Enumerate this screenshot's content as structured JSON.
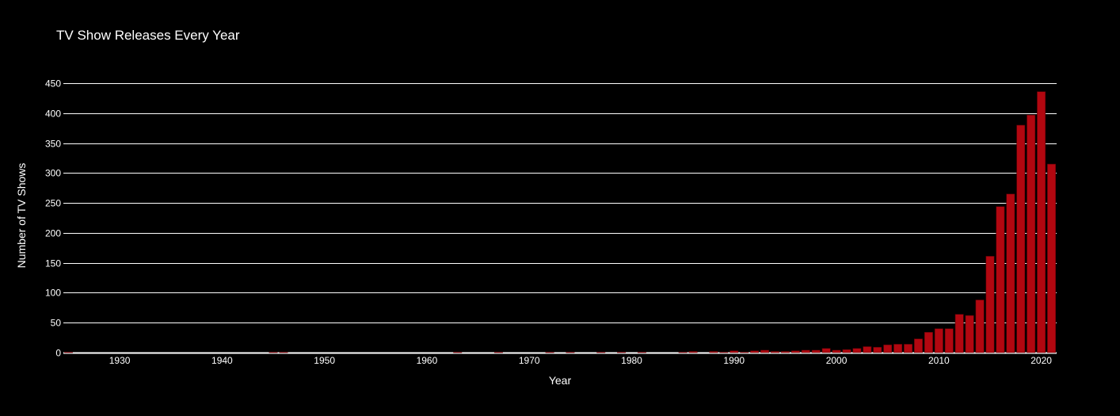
{
  "chart_data": {
    "type": "bar",
    "title": "TV Show Releases Every Year",
    "xlabel": "Year",
    "ylabel": "Number of TV Shows",
    "xlim": [
      1924.5,
      2021.5
    ],
    "ylim": [
      0,
      470
    ],
    "xticks": [
      1930,
      1940,
      1950,
      1960,
      1970,
      1980,
      1990,
      2000,
      2010,
      2020
    ],
    "yticks": [
      0,
      50,
      100,
      150,
      200,
      250,
      300,
      350,
      400,
      450
    ],
    "grid": true,
    "bar_color": "#b20710",
    "bar_outline": "#5a0006",
    "background": "#000000",
    "x": [
      1925,
      1945,
      1946,
      1963,
      1967,
      1972,
      1974,
      1977,
      1979,
      1981,
      1985,
      1986,
      1988,
      1989,
      1990,
      1991,
      1992,
      1993,
      1994,
      1995,
      1996,
      1997,
      1998,
      1999,
      2000,
      2001,
      2002,
      2003,
      2004,
      2005,
      2006,
      2007,
      2008,
      2009,
      2010,
      2011,
      2012,
      2013,
      2014,
      2015,
      2016,
      2017,
      2018,
      2019,
      2020,
      2021
    ],
    "values": [
      1,
      1,
      1,
      1,
      1,
      1,
      1,
      1,
      1,
      1,
      1,
      2,
      2,
      1,
      3,
      1,
      3,
      4,
      2,
      2,
      3,
      4,
      4,
      7,
      4,
      5,
      7,
      10,
      9,
      13,
      14,
      14,
      23,
      34,
      40,
      40,
      64,
      62,
      88,
      161,
      244,
      265,
      380,
      397,
      436,
      315
    ]
  }
}
